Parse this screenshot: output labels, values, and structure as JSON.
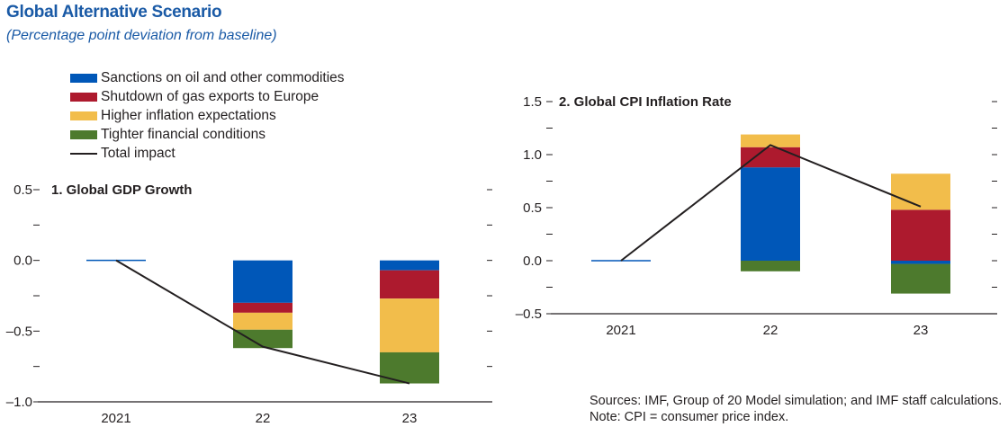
{
  "title": "Global Alternative Scenario",
  "subtitle": "(Percentage point deviation from baseline)",
  "legend": [
    {
      "label": "Sanctions on oil and other commodities",
      "color": "#0057b8",
      "kind": "bar"
    },
    {
      "label": "Shutdown of gas exports to Europe",
      "color": "#ad1a2e",
      "kind": "bar"
    },
    {
      "label": "Higher inflation expectations",
      "color": "#f2bd4b",
      "kind": "bar"
    },
    {
      "label": "Tighter financial conditions",
      "color": "#4d7a2d",
      "kind": "bar"
    },
    {
      "label": "Total impact",
      "color": "#231f20",
      "kind": "line"
    }
  ],
  "notes": {
    "sources": "Sources: IMF, Group of 20 Model simulation; and IMF staff calculations.",
    "note": "Note: CPI = consumer price index."
  },
  "chart_data": [
    {
      "type": "bar",
      "stacked": true,
      "title": "1. Global GDP Growth",
      "categories": [
        "2021",
        "22",
        "23"
      ],
      "ylim": [
        -1.0,
        0.5
      ],
      "yticks": [
        0.5,
        0.0,
        -0.5,
        -1.0
      ],
      "ytick_labels": [
        "0.5",
        "0.0",
        "–0.5",
        "–1.0"
      ],
      "series": [
        {
          "name": "Sanctions on oil and other commodities",
          "values": [
            0.0,
            -0.3,
            -0.07
          ]
        },
        {
          "name": "Shutdown of gas exports to Europe",
          "values": [
            0.0,
            -0.07,
            -0.2
          ]
        },
        {
          "name": "Higher inflation expectations",
          "values": [
            0.0,
            -0.12,
            -0.38
          ]
        },
        {
          "name": "Tighter financial conditions",
          "values": [
            0.0,
            -0.13,
            -0.22
          ]
        }
      ],
      "line": {
        "name": "Total impact",
        "values": [
          0.0,
          -0.61,
          -0.87
        ]
      }
    },
    {
      "type": "bar",
      "stacked": true,
      "title": "2. Global CPI Inflation Rate",
      "categories": [
        "2021",
        "22",
        "23"
      ],
      "ylim": [
        -0.5,
        1.5
      ],
      "yticks": [
        1.5,
        1.0,
        0.5,
        0.0,
        -0.5
      ],
      "ytick_labels": [
        "1.5",
        "1.0",
        "0.5",
        "0.0",
        "–0.5"
      ],
      "series": [
        {
          "name": "Sanctions on oil and other commodities",
          "values": [
            0.0,
            0.88,
            -0.03
          ]
        },
        {
          "name": "Shutdown of gas exports to Europe",
          "values": [
            0.0,
            0.19,
            0.48
          ]
        },
        {
          "name": "Higher inflation expectations",
          "values": [
            0.0,
            0.12,
            0.34
          ]
        },
        {
          "name": "Tighter financial conditions",
          "values": [
            0.0,
            -0.1,
            -0.28
          ]
        }
      ],
      "line": {
        "name": "Total impact",
        "values": [
          0.0,
          1.09,
          0.51
        ]
      }
    }
  ]
}
